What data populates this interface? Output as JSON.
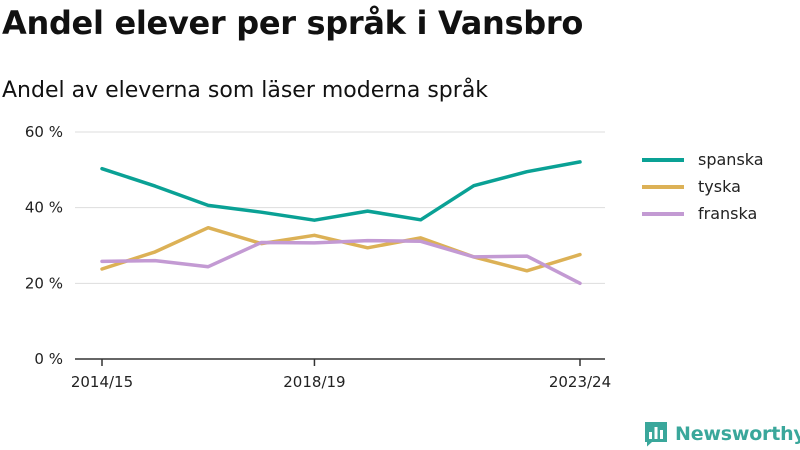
{
  "title": "Andel elever per språk i Vansbro",
  "subtitle": "Andel av eleverna som läser moderna språk",
  "brand": "Newsworthy",
  "chart_data": {
    "type": "line",
    "title": "Andel elever per språk i Vansbro",
    "subtitle": "Andel av eleverna som läser moderna språk",
    "xlabel": "",
    "ylabel": "",
    "x": [
      "2014/15",
      "2015/16",
      "2016/17",
      "2017/18",
      "2018/19",
      "2019/20",
      "2020/21",
      "2021/22",
      "2022/23",
      "2023/24"
    ],
    "x_tick_labels": [
      "2014/15",
      "2018/19",
      "2023/24"
    ],
    "ylim": [
      0,
      60
    ],
    "y_ticks": [
      0,
      20,
      40,
      60
    ],
    "y_tick_labels": [
      "0 %",
      "20 %",
      "40 %",
      "60 %"
    ],
    "grid": true,
    "legend_position": "right",
    "series": [
      {
        "name": "spanska",
        "color": "#0aa195",
        "values": [
          50.3,
          45.7,
          40.6,
          38.8,
          36.7,
          39.1,
          36.8,
          45.8,
          49.5,
          52.1
        ]
      },
      {
        "name": "tyska",
        "color": "#dcb156",
        "values": [
          23.8,
          28.3,
          34.7,
          30.5,
          32.7,
          29.4,
          32.0,
          27.0,
          23.3,
          27.6
        ]
      },
      {
        "name": "franska",
        "color": "#c39ad3",
        "values": [
          25.8,
          26.0,
          24.4,
          30.8,
          30.7,
          31.3,
          31.1,
          27.0,
          27.2,
          20.0
        ]
      }
    ]
  }
}
